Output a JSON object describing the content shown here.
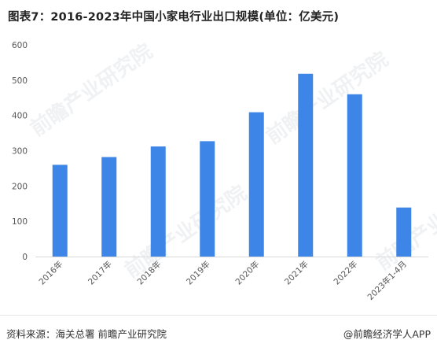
{
  "title": "图表7：2016-2023年中国小家电行业出口规模(单位：亿美元)",
  "source": "资料来源：海关总署 前瞻产业研究院",
  "brand": "@前瞻经济学人APP",
  "watermark": "前瞻产业研究院",
  "colors": {
    "bar": "#3d85e6",
    "axis": "#d9d9d9",
    "tick_text": "#555555"
  },
  "chart_data": {
    "type": "bar",
    "categories": [
      "2016年",
      "2017年",
      "2018年",
      "2019年",
      "2020年",
      "2021年",
      "2022年",
      "2023年1-4月"
    ],
    "values": [
      260,
      282,
      312,
      327,
      409,
      518,
      460,
      139
    ],
    "ylim": [
      0,
      600
    ],
    "yticks": [
      0,
      100,
      200,
      300,
      400,
      500,
      600
    ],
    "grid": false,
    "legend": "none"
  }
}
